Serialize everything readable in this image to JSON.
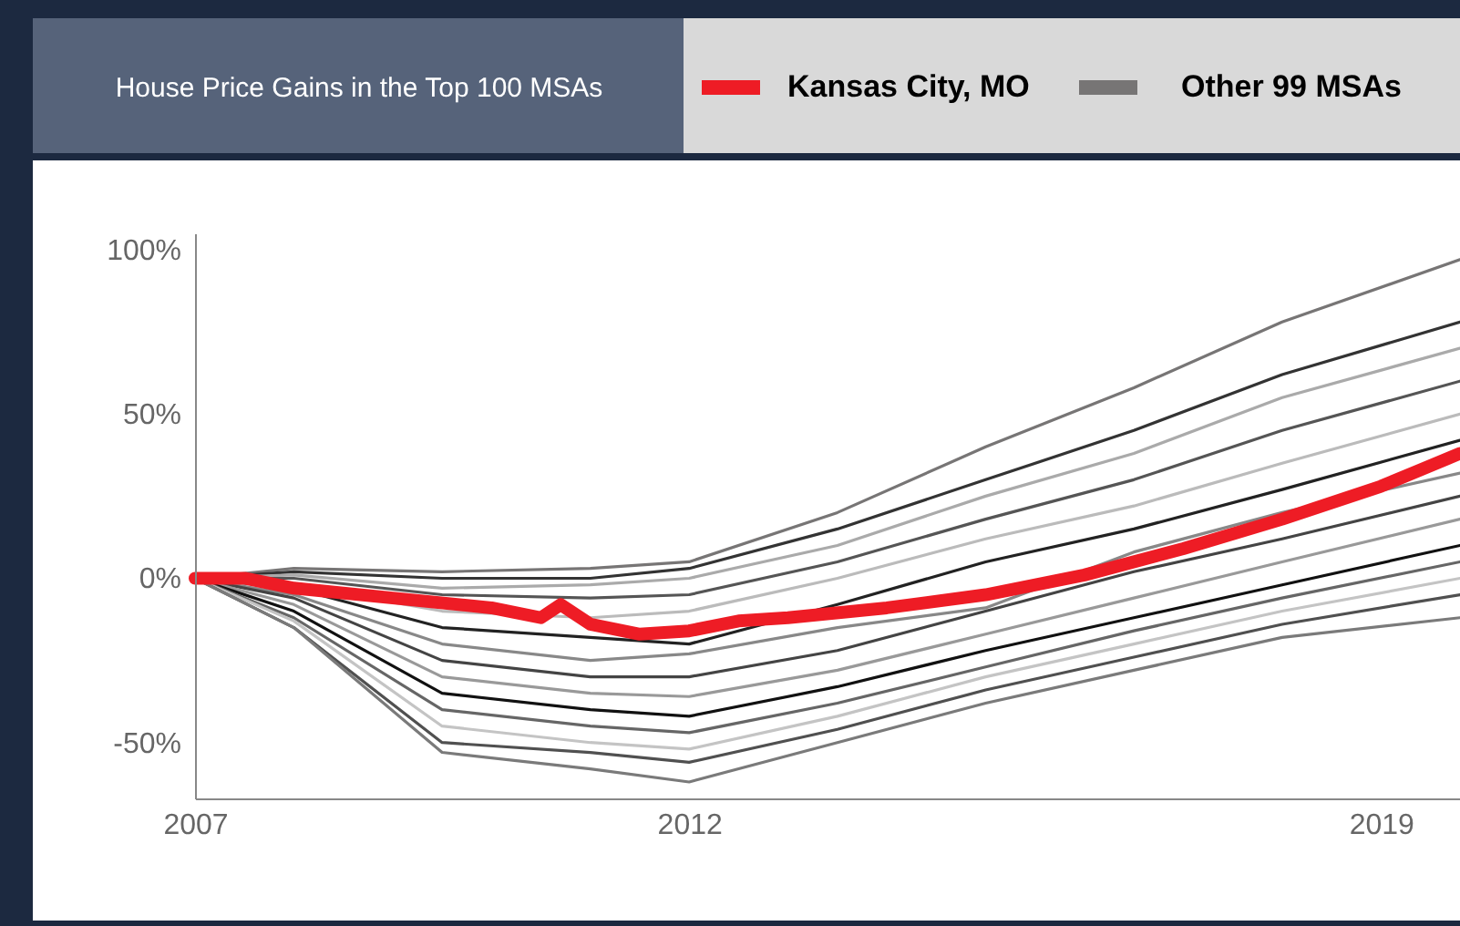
{
  "chart_data": {
    "type": "line",
    "title": "House Price Gains in the Top 100 MSAs",
    "x": [
      2007,
      2008,
      2009.5,
      2011,
      2012,
      2013.5,
      2015,
      2016.5,
      2018,
      2019.8
    ],
    "xlim": [
      2007,
      2019.8
    ],
    "xticks": [
      2007,
      2012,
      2019
    ],
    "ylim": [
      -67,
      105
    ],
    "yticks": [
      {
        "value": 100,
        "label": "100%"
      },
      {
        "value": 50,
        "label": "50%"
      },
      {
        "value": 0,
        "label": "0%"
      },
      {
        "value": -50,
        "label": "-50%"
      }
    ],
    "grid": false,
    "legend": "top",
    "marker": "none",
    "line_style": "solid",
    "series": [
      {
        "name": "Other 99 MSAs",
        "color": "#777575",
        "values": [
          0,
          3,
          2,
          3,
          5,
          20,
          40,
          58,
          78,
          97
        ]
      },
      {
        "color": "#333333",
        "values": [
          0,
          2,
          0,
          0,
          3,
          15,
          30,
          45,
          62,
          78
        ]
      },
      {
        "color": "#aaaaaa",
        "values": [
          0,
          1,
          -3,
          -2,
          0,
          10,
          25,
          38,
          55,
          70
        ]
      },
      {
        "color": "#555555",
        "values": [
          0,
          0,
          -5,
          -6,
          -5,
          5,
          18,
          30,
          45,
          60
        ]
      },
      {
        "color": "#bbbbbb",
        "values": [
          0,
          -2,
          -10,
          -12,
          -10,
          0,
          12,
          22,
          35,
          50
        ]
      },
      {
        "color": "#222222",
        "values": [
          0,
          -3,
          -15,
          -18,
          -20,
          -8,
          5,
          15,
          27,
          42
        ]
      },
      {
        "color": "#888888",
        "values": [
          0,
          -5,
          -20,
          -25,
          -23,
          -15,
          -9,
          8,
          20,
          32
        ]
      },
      {
        "color": "#444444",
        "values": [
          0,
          -6,
          -25,
          -30,
          -30,
          -22,
          -10,
          2,
          12,
          25
        ]
      },
      {
        "color": "#999999",
        "values": [
          0,
          -8,
          -30,
          -35,
          -36,
          -28,
          -17,
          -6,
          5,
          18
        ]
      },
      {
        "color": "#111111",
        "values": [
          0,
          -10,
          -35,
          -40,
          -42,
          -33,
          -22,
          -12,
          -2,
          10
        ]
      },
      {
        "color": "#666666",
        "values": [
          0,
          -12,
          -40,
          -45,
          -47,
          -38,
          -27,
          -16,
          -6,
          5
        ]
      },
      {
        "color": "#c4c4c4",
        "values": [
          0,
          -13,
          -45,
          -50,
          -52,
          -42,
          -30,
          -20,
          -10,
          0
        ]
      },
      {
        "color": "#505050",
        "values": [
          0,
          -15,
          -50,
          -53,
          -56,
          -46,
          -34,
          -24,
          -14,
          -5
        ]
      },
      {
        "color": "#7a7a7a",
        "values": [
          0,
          -15,
          -53,
          -58,
          -62,
          -50,
          -38,
          -28,
          -18,
          -12
        ]
      },
      {
        "name": "Kansas City, MO",
        "color": "#ee1c25",
        "x": [
          2007,
          2007.5,
          2008,
          2009,
          2010,
          2010.5,
          2010.7,
          2011,
          2011.5,
          2012,
          2012.5,
          2013,
          2014,
          2015,
          2016,
          2017,
          2018,
          2019,
          2019.8
        ],
        "values": [
          0,
          0,
          -3,
          -6,
          -9,
          -12,
          -8,
          -14,
          -17,
          -16,
          -13,
          -12,
          -9,
          -5,
          1,
          9,
          18,
          28,
          38
        ]
      }
    ]
  }
}
